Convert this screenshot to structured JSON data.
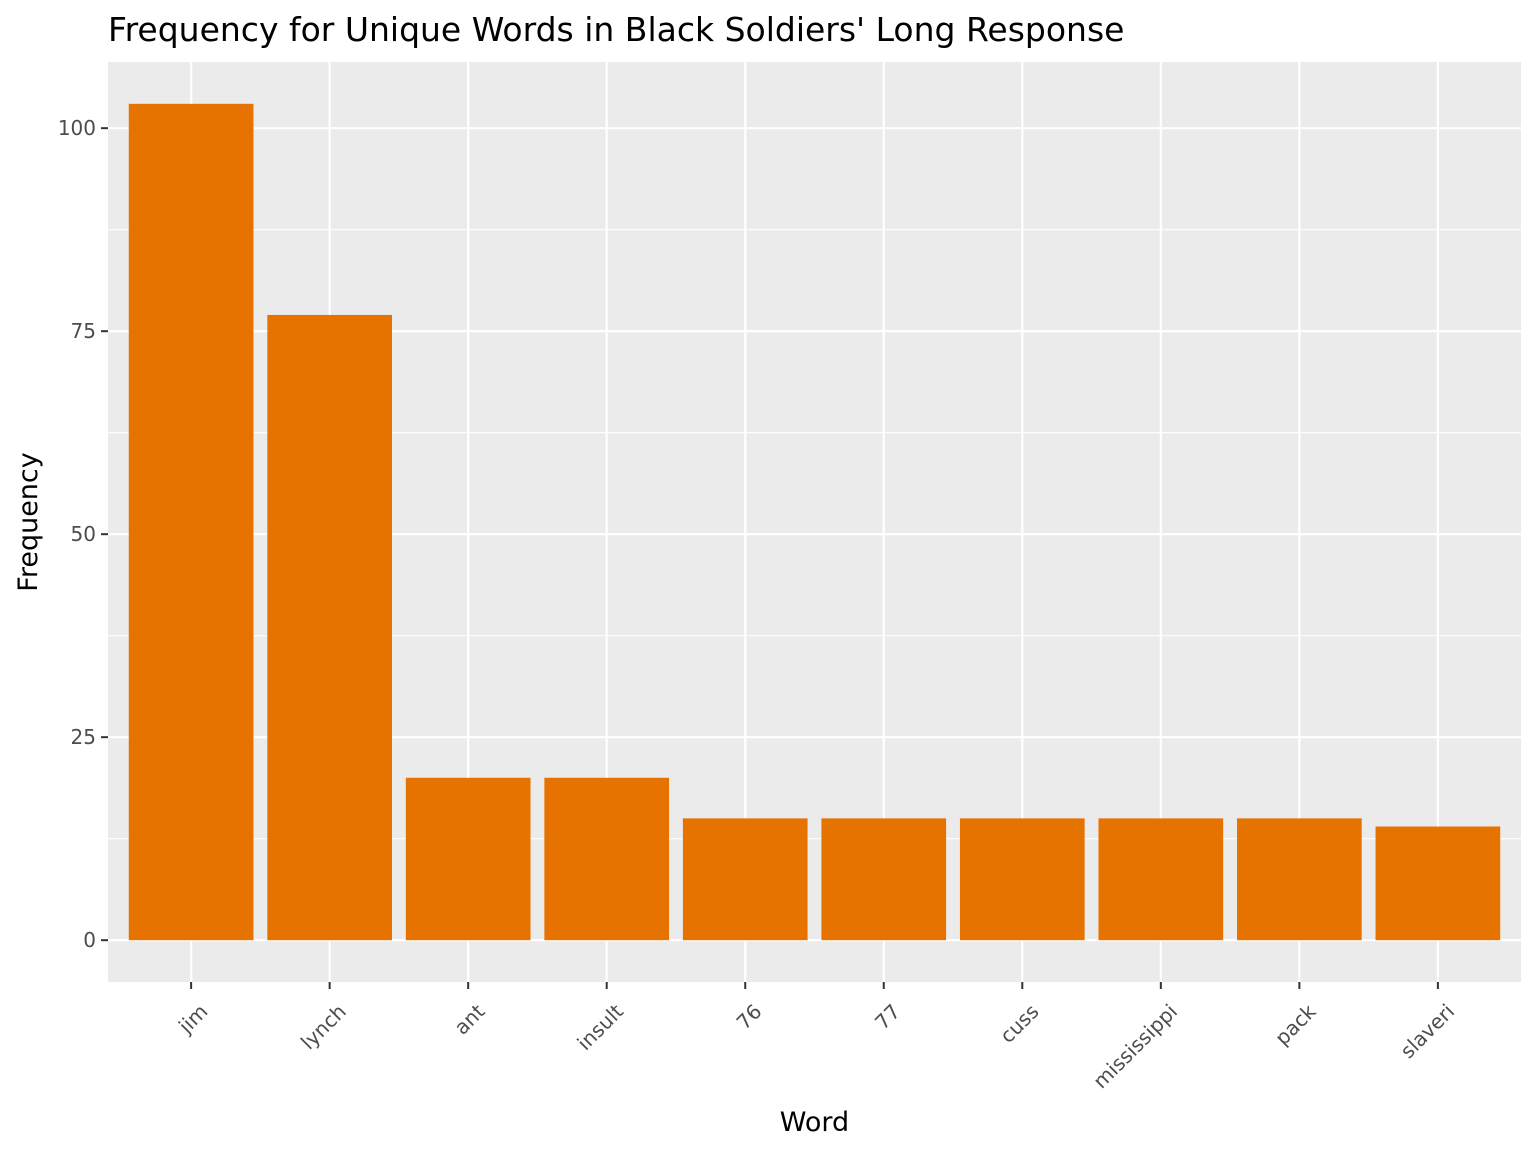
{
  "chart_data": {
    "type": "bar",
    "title": "Frequency for Unique Words in Black Soldiers' Long Response",
    "xlabel": "Word",
    "ylabel": "Frequency",
    "categories": [
      "jim",
      "lynch",
      "ant",
      "insult",
      "76",
      "77",
      "cuss",
      "mississippi",
      "pack",
      "slaveri"
    ],
    "values": [
      103,
      77,
      20,
      20,
      15,
      15,
      15,
      15,
      15,
      14
    ],
    "ylim": [
      -5.15,
      108.15
    ],
    "yticks": [
      0,
      25,
      50,
      75,
      100
    ],
    "yticklabels": [
      "0",
      "25",
      "50",
      "75",
      "100"
    ],
    "grid": true,
    "legend": "none",
    "colors": {
      "bar": "#E67300",
      "panel": "#EBEBEB",
      "grid": "#FFFFFF",
      "tick_text": "#4D4D4D",
      "axis_tick": "#333333"
    }
  }
}
